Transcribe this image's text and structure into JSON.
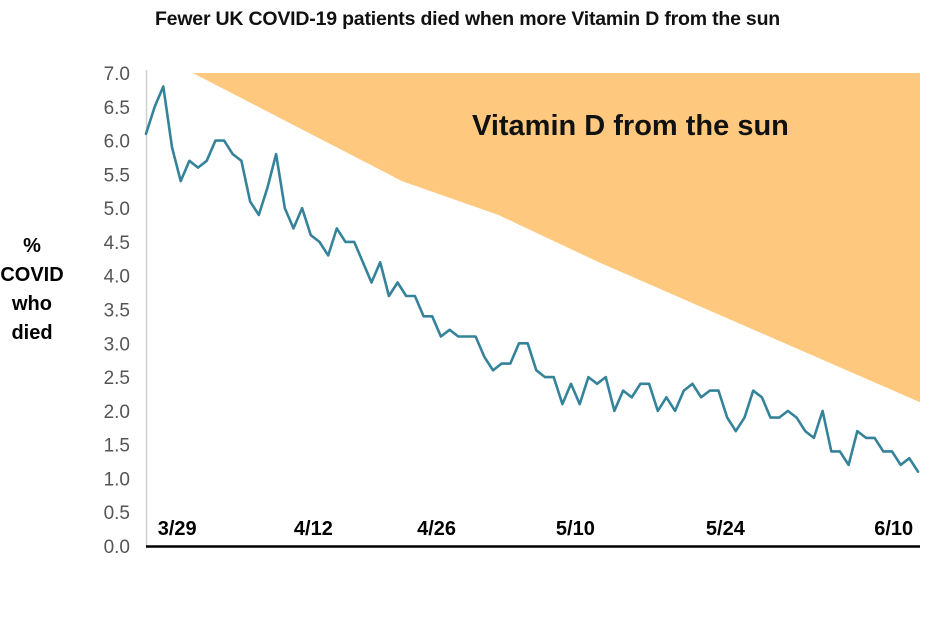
{
  "chart_data": {
    "type": "line",
    "title": "Fewer UK COVID-19 patients died when more Vitamin D from the sun",
    "ylabel": [
      "%",
      "COVID",
      "who",
      "died"
    ],
    "xlabel": "",
    "ylim": [
      0,
      7.0
    ],
    "yticks": [
      "0.0",
      "0.5",
      "1.0",
      "1.5",
      "2.0",
      "2.5",
      "3.0",
      "3.5",
      "4.0",
      "4.5",
      "5.0",
      "5.5",
      "6.0",
      "6.5",
      "7.0"
    ],
    "ytick_values": [
      0,
      0.5,
      1.0,
      1.5,
      2.0,
      2.5,
      3.0,
      3.5,
      4.0,
      4.5,
      5.0,
      5.5,
      6.0,
      6.5,
      7.0
    ],
    "xticks": [
      {
        "label": "3/29",
        "day": 3.6
      },
      {
        "label": "4/12",
        "day": 19.3
      },
      {
        "label": "4/26",
        "day": 33.5
      },
      {
        "label": "5/10",
        "day": 49.5
      },
      {
        "label": "5/24",
        "day": 66.8
      },
      {
        "label": "6/10",
        "day": 86.2
      }
    ],
    "grid": false,
    "series": [
      {
        "name": "% COVID who died",
        "color": "#35839A",
        "values": [
          6.1,
          6.5,
          6.8,
          5.9,
          5.4,
          5.7,
          5.6,
          5.7,
          6.0,
          6.0,
          5.8,
          5.7,
          5.1,
          4.9,
          5.3,
          5.8,
          5.0,
          4.7,
          5.0,
          4.6,
          4.5,
          4.3,
          4.7,
          4.5,
          4.5,
          4.2,
          3.9,
          4.2,
          3.7,
          3.9,
          3.7,
          3.7,
          3.4,
          3.4,
          3.1,
          3.2,
          3.1,
          3.1,
          3.1,
          2.8,
          2.6,
          2.7,
          2.7,
          3.0,
          3.0,
          2.6,
          2.5,
          2.5,
          2.1,
          2.4,
          2.1,
          2.5,
          2.4,
          2.5,
          2.0,
          2.3,
          2.2,
          2.4,
          2.4,
          2.0,
          2.2,
          2.0,
          2.3,
          2.4,
          2.2,
          2.3,
          2.3,
          1.9,
          1.7,
          1.9,
          2.3,
          2.2,
          1.9,
          1.9,
          2.0,
          1.9,
          1.7,
          1.6,
          2.0,
          1.4,
          1.4,
          1.2,
          1.7,
          1.6,
          1.6,
          1.4,
          1.4,
          1.2,
          1.3,
          1.1
        ]
      }
    ],
    "annotation": {
      "label": "Vitamin D from the sun",
      "color": "#FEC97E",
      "boundary": [
        {
          "day": 5.4,
          "value": 7.0
        },
        {
          "day": 29.5,
          "value": 5.4
        },
        {
          "day": 40.6,
          "value": 4.9
        },
        {
          "day": 52.2,
          "value": 4.2
        },
        {
          "day": 63.8,
          "value": 3.55
        },
        {
          "day": 89.2,
          "value": 2.13
        }
      ]
    }
  }
}
